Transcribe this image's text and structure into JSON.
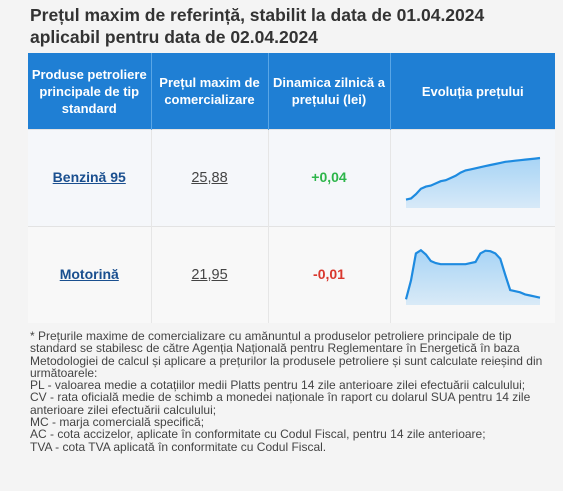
{
  "title": {
    "line1": "Prețul maxim de referință, stabilit la data de 01.04.2024",
    "line2": "aplicabil pentru data de 02.04.2024"
  },
  "table": {
    "headers": [
      "Produse petroliere principale de tip standard",
      "Prețul maxim de comercializare",
      "Dinamica zilnică a prețului (lei)",
      "Evoluția prețului"
    ],
    "rows": [
      {
        "product": "Benzină 95",
        "price": "25,88",
        "change": "+0,04",
        "change_color": "#2db54a",
        "trend": [
          0.1,
          0.12,
          0.2,
          0.3,
          0.34,
          0.36,
          0.4,
          0.44,
          0.46,
          0.5,
          0.54,
          0.6,
          0.64,
          0.66,
          0.68,
          0.7,
          0.72,
          0.74,
          0.76,
          0.78,
          0.8,
          0.81,
          0.82,
          0.83,
          0.84,
          0.85,
          0.86,
          0.87
        ]
      },
      {
        "product": "Motorină",
        "price": "21,95",
        "change": "-0,01",
        "change_color": "#d9382e",
        "trend": [
          0.05,
          0.4,
          0.9,
          0.96,
          0.88,
          0.76,
          0.72,
          0.7,
          0.7,
          0.7,
          0.7,
          0.7,
          0.7,
          0.72,
          0.74,
          0.9,
          0.95,
          0.94,
          0.9,
          0.8,
          0.5,
          0.22,
          0.2,
          0.18,
          0.14,
          0.12,
          0.1,
          0.08
        ]
      }
    ]
  },
  "chart_colors": {
    "line": "#1e8be0",
    "fill": "#9fd0f5"
  },
  "notes": [
    "* Prețurile maxime de comercializare cu amănuntul a produselor petroliere principale de tip standard se stabilesc de către Agenția Națională pentru Reglementare în Energetică în baza Metodologiei de calcul și aplicare a prețurilor la produsele petroliere și sunt calculate reieșind din următoarele:",
    "PL - valoarea medie a cotațiilor medii Platts pentru 14 zile anterioare zilei efectuării calculului;",
    "CV - rata oficială medie de schimb a monedei naționale în raport cu dolarul SUA pentru 14 zile anterioare zilei efectuării calculului;",
    "MC - marja comercială specifică;",
    "AC - cota accizelor, aplicate în conformitate cu Codul Fiscal, pentru 14 zile anterioare;",
    "TVA - cota TVA aplicată în conformitate cu Codul Fiscal."
  ]
}
